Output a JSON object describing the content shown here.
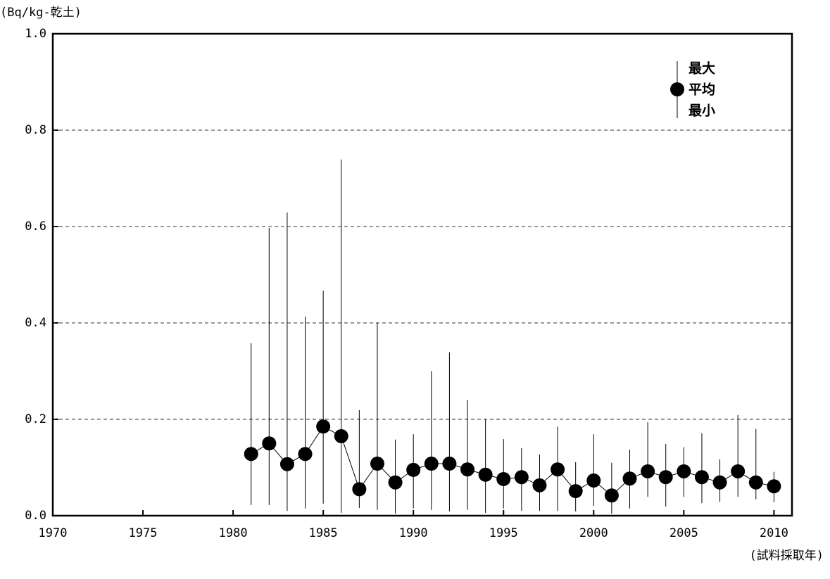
{
  "chart_data": {
    "type": "errorbar",
    "y_label": "(Bq/kg-乾土)",
    "x_label": "(試料採取年)",
    "legend_labels": [
      "最大",
      "平均",
      "最小"
    ],
    "x": [
      1981,
      1982,
      1983,
      1984,
      1985,
      1986,
      1987,
      1988,
      1989,
      1990,
      1991,
      1992,
      1993,
      1994,
      1995,
      1996,
      1997,
      1998,
      1999,
      2000,
      2001,
      2002,
      2003,
      2004,
      2005,
      2006,
      2007,
      2008,
      2009,
      2010
    ],
    "series": [
      {
        "color": "#000000",
        "values": [
          0.128,
          0.15,
          0.107,
          0.128,
          0.185,
          0.165,
          0.055,
          0.108,
          0.069,
          0.095,
          0.108,
          0.108,
          0.096,
          0.085,
          0.076,
          0.08,
          0.063,
          0.096,
          0.051,
          0.073,
          0.042,
          0.077,
          0.092,
          0.08,
          0.092,
          0.08,
          0.069,
          0.092,
          0.069,
          0.061
        ],
        "max": [
          0.358,
          0.597,
          0.629,
          0.413,
          0.467,
          0.739,
          0.219,
          0.4,
          0.158,
          0.169,
          0.3,
          0.339,
          0.24,
          0.2,
          0.159,
          0.14,
          0.127,
          0.185,
          0.111,
          0.169,
          0.11,
          0.137,
          0.194,
          0.149,
          0.142,
          0.171,
          0.117,
          0.209,
          0.18,
          0.091
        ],
        "min": [
          0.022,
          0.022,
          0.01,
          0.015,
          0.025,
          0.006,
          0.016,
          0.012,
          0.004,
          0.015,
          0.012,
          0.009,
          0.012,
          0.006,
          0.015,
          0.01,
          0.01,
          0.01,
          0.009,
          0.02,
          0.004,
          0.015,
          0.039,
          0.019,
          0.039,
          0.026,
          0.029,
          0.039,
          0.034,
          0.028
        ]
      }
    ],
    "xlim": [
      1970,
      2011
    ],
    "xticks": [
      1970,
      1975,
      1980,
      1985,
      1990,
      1995,
      2000,
      2005,
      2010
    ],
    "ylim": [
      0,
      1
    ],
    "yticks": [
      {
        "value": 0,
        "label": "0.0"
      },
      0.2,
      0.4,
      0.6,
      0.8,
      {
        "value": 1,
        "label": "1.0"
      }
    ],
    "grid": true
  }
}
